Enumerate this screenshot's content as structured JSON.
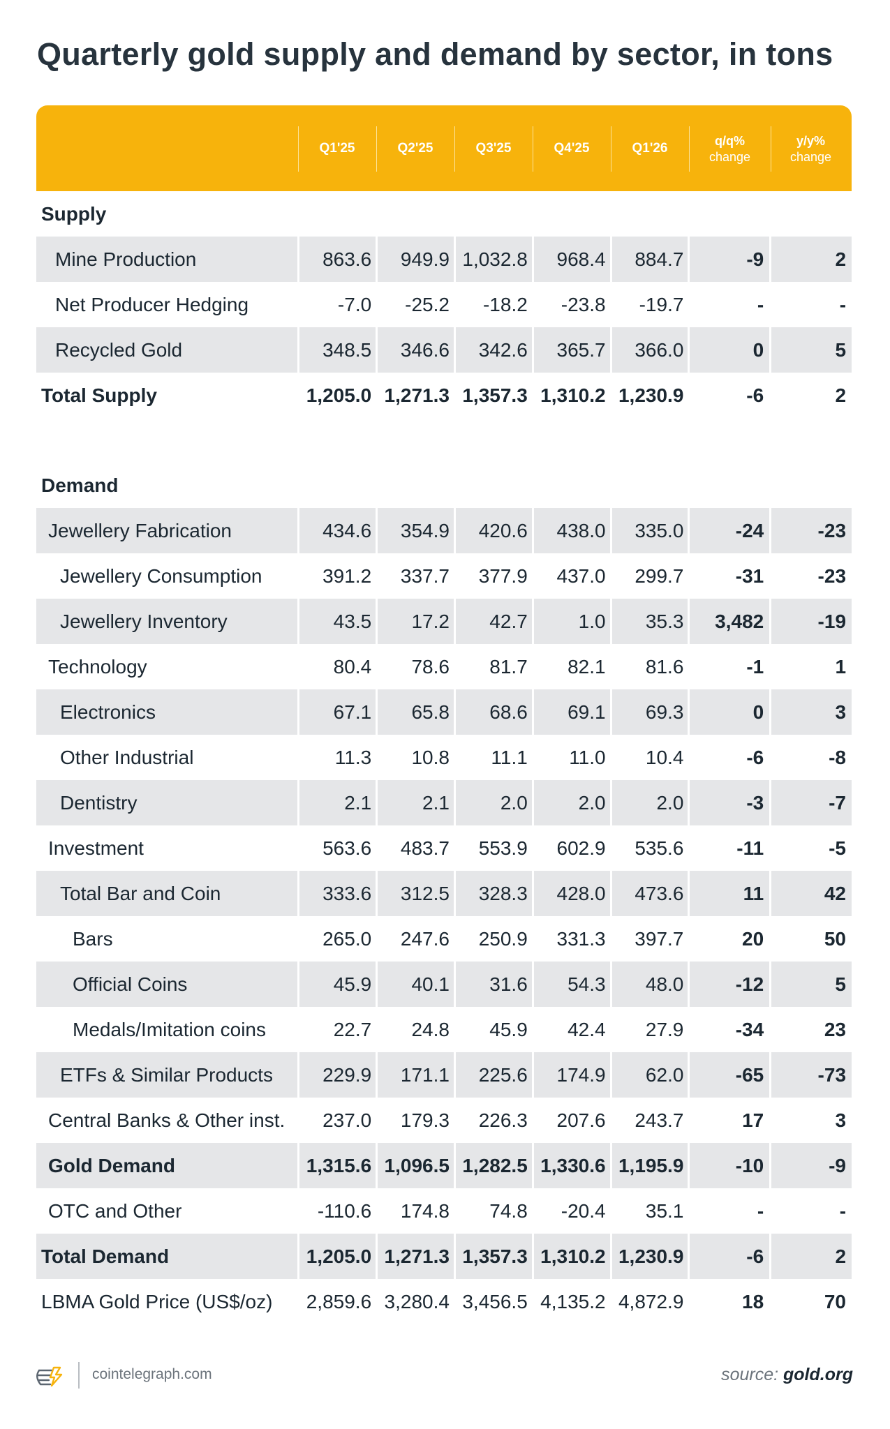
{
  "title": "Quarterly gold supply and demand by sector, in tons",
  "columns": {
    "q1": "Q1'25",
    "q2": "Q2'25",
    "q3": "Q3'25",
    "q4": "Q4'25",
    "q5": "Q1'26",
    "qq_top": "q/q%",
    "qq_bottom": "change",
    "yy_top": "y/y%",
    "yy_bottom": "change"
  },
  "supply": {
    "heading": "Supply",
    "rows": [
      {
        "label": "Mine Production",
        "v": [
          "863.6",
          "949.9",
          "1,032.8",
          "968.4",
          "884.7"
        ],
        "qq": "-9",
        "yy": "2"
      },
      {
        "label": "Net Producer Hedging",
        "v": [
          "-7.0",
          "-25.2",
          "-18.2",
          "-23.8",
          "-19.7"
        ],
        "qq": "-",
        "yy": "-"
      },
      {
        "label": "Recycled Gold",
        "v": [
          "348.5",
          "346.6",
          "342.6",
          "365.7",
          "366.0"
        ],
        "qq": "0",
        "yy": "5"
      },
      {
        "label": "Total Supply",
        "v": [
          "1,205.0",
          "1,271.3",
          "1,357.3",
          "1,310.2",
          "1,230.9"
        ],
        "qq": "-6",
        "yy": "2"
      }
    ]
  },
  "demand": {
    "heading": "Demand",
    "rows": [
      {
        "label": "Jewellery Fabrication",
        "v": [
          "434.6",
          "354.9",
          "420.6",
          "438.0",
          "335.0"
        ],
        "qq": "-24",
        "yy": "-23"
      },
      {
        "label": "Jewellery Consumption",
        "v": [
          "391.2",
          "337.7",
          "377.9",
          "437.0",
          "299.7"
        ],
        "qq": "-31",
        "yy": "-23"
      },
      {
        "label": "Jewellery Inventory",
        "v": [
          "43.5",
          "17.2",
          "42.7",
          "1.0",
          "35.3"
        ],
        "qq": "3,482",
        "yy": "-19"
      },
      {
        "label": "Technology",
        "v": [
          "80.4",
          "78.6",
          "81.7",
          "82.1",
          "81.6"
        ],
        "qq": "-1",
        "yy": "1"
      },
      {
        "label": "Electronics",
        "v": [
          "67.1",
          "65.8",
          "68.6",
          "69.1",
          "69.3"
        ],
        "qq": "0",
        "yy": "3"
      },
      {
        "label": "Other Industrial",
        "v": [
          "11.3",
          "10.8",
          "11.1",
          "11.0",
          "10.4"
        ],
        "qq": "-6",
        "yy": "-8"
      },
      {
        "label": "Dentistry",
        "v": [
          "2.1",
          "2.1",
          "2.0",
          "2.0",
          "2.0"
        ],
        "qq": "-3",
        "yy": "-7"
      },
      {
        "label": "Investment",
        "v": [
          "563.6",
          "483.7",
          "553.9",
          "602.9",
          "535.6"
        ],
        "qq": "-11",
        "yy": "-5"
      },
      {
        "label": "Total Bar and Coin",
        "v": [
          "333.6",
          "312.5",
          "328.3",
          "428.0",
          "473.6"
        ],
        "qq": "11",
        "yy": "42"
      },
      {
        "label": "Bars",
        "v": [
          "265.0",
          "247.6",
          "250.9",
          "331.3",
          "397.7"
        ],
        "qq": "20",
        "yy": "50"
      },
      {
        "label": "Official Coins",
        "v": [
          "45.9",
          "40.1",
          "31.6",
          "54.3",
          "48.0"
        ],
        "qq": "-12",
        "yy": "5"
      },
      {
        "label": "Medals/Imitation coins",
        "v": [
          "22.7",
          "24.8",
          "45.9",
          "42.4",
          "27.9"
        ],
        "qq": "-34",
        "yy": "23"
      },
      {
        "label": "ETFs & Similar Products",
        "v": [
          "229.9",
          "171.1",
          "225.6",
          "174.9",
          "62.0"
        ],
        "qq": "-65",
        "yy": "-73"
      },
      {
        "label": "Central Banks & Other inst.",
        "v": [
          "237.0",
          "179.3",
          "226.3",
          "207.6",
          "243.7"
        ],
        "qq": "17",
        "yy": "3"
      },
      {
        "label": "Gold Demand",
        "v": [
          "1,315.6",
          "1,096.5",
          "1,282.5",
          "1,330.6",
          "1,195.9"
        ],
        "qq": "-10",
        "yy": "-9"
      },
      {
        "label": "OTC and Other",
        "v": [
          "-110.6",
          "174.8",
          "74.8",
          "-20.4",
          "35.1"
        ],
        "qq": "-",
        "yy": "-"
      },
      {
        "label": "Total Demand",
        "v": [
          "1,205.0",
          "1,271.3",
          "1,357.3",
          "1,310.2",
          "1,230.9"
        ],
        "qq": "-6",
        "yy": "2"
      },
      {
        "label": "LBMA Gold Price (US$/oz)",
        "v": [
          "2,859.6",
          "3,280.4",
          "3,456.5",
          "4,135.2",
          "4,872.9"
        ],
        "qq": "18",
        "yy": "70"
      }
    ]
  },
  "footer": {
    "site": "cointelegraph.com",
    "source_prefix": "source:",
    "source_name": "gold.org",
    "logo_icon": "cointelegraph-logo-icon"
  },
  "colors": {
    "header_bg": "#f7b30c",
    "row_shade": "#e5e6e8",
    "text": "#1b2731"
  }
}
